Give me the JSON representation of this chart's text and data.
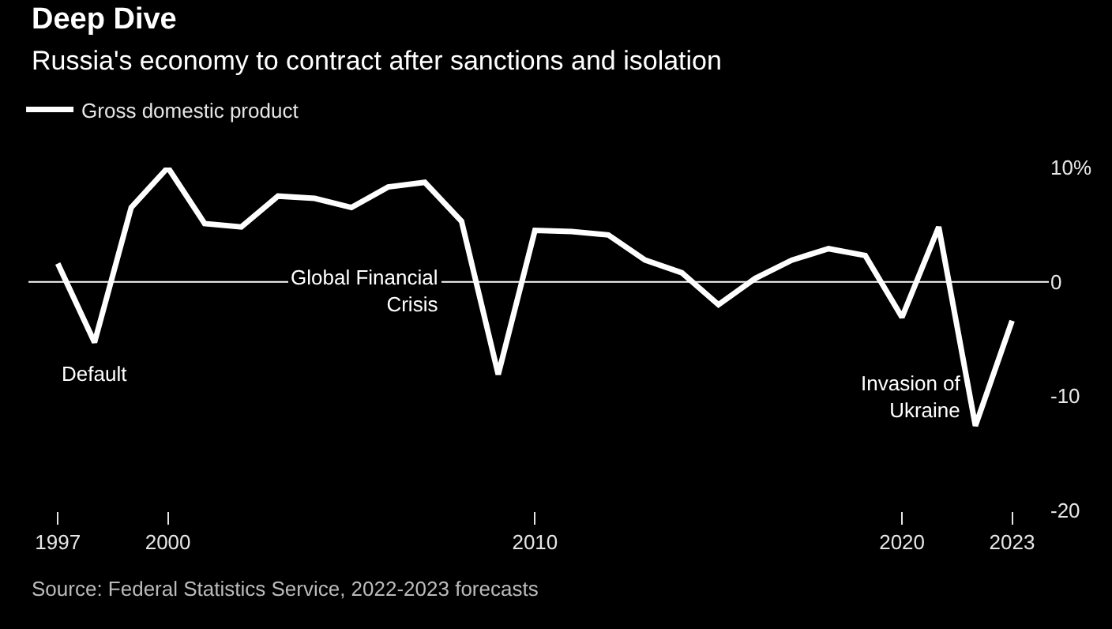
{
  "chart_data": {
    "type": "line",
    "title": "Deep Dive",
    "subtitle": "Russia's economy to contract after sanctions and isolation",
    "x": [
      1997,
      1998,
      1999,
      2000,
      2001,
      2002,
      2003,
      2004,
      2005,
      2006,
      2007,
      2008,
      2009,
      2010,
      2011,
      2012,
      2013,
      2014,
      2015,
      2016,
      2017,
      2018,
      2019,
      2020,
      2021,
      2022,
      2023
    ],
    "series": [
      {
        "name": "Gross domestic product",
        "color": "#ffffff",
        "values": [
          1.6,
          -5.3,
          6.5,
          10.0,
          5.1,
          4.8,
          7.5,
          7.3,
          6.5,
          8.3,
          8.7,
          5.3,
          -8.1,
          4.5,
          4.4,
          4.1,
          1.9,
          0.8,
          -2.0,
          0.3,
          1.9,
          2.9,
          2.3,
          -3.1,
          4.8,
          -12.6,
          -3.4
        ]
      }
    ],
    "xlim": [
      1996.2,
      2024.0
    ],
    "xticks": [
      1997,
      2000,
      2010,
      2020,
      2023
    ],
    "ylim": [
      -20,
      10
    ],
    "yticks": [
      {
        "value": 10,
        "label": "10%"
      },
      0,
      -10,
      -20
    ],
    "ref_lines": [
      {
        "axis": "y",
        "value": 0,
        "color": "#ffffff"
      }
    ],
    "annotations": [
      {
        "text": "Default",
        "x": 1998,
        "y": -5.3
      },
      "Global Financial Crisis",
      {
        "text": "Invasion of Ukraine",
        "x": 2022,
        "y": -12.6
      },
      "Source: Federal Statistics Service, 2022-2023 forecasts"
    ],
    "legend": "top left",
    "marker": "none",
    "line_style": "solid"
  }
}
